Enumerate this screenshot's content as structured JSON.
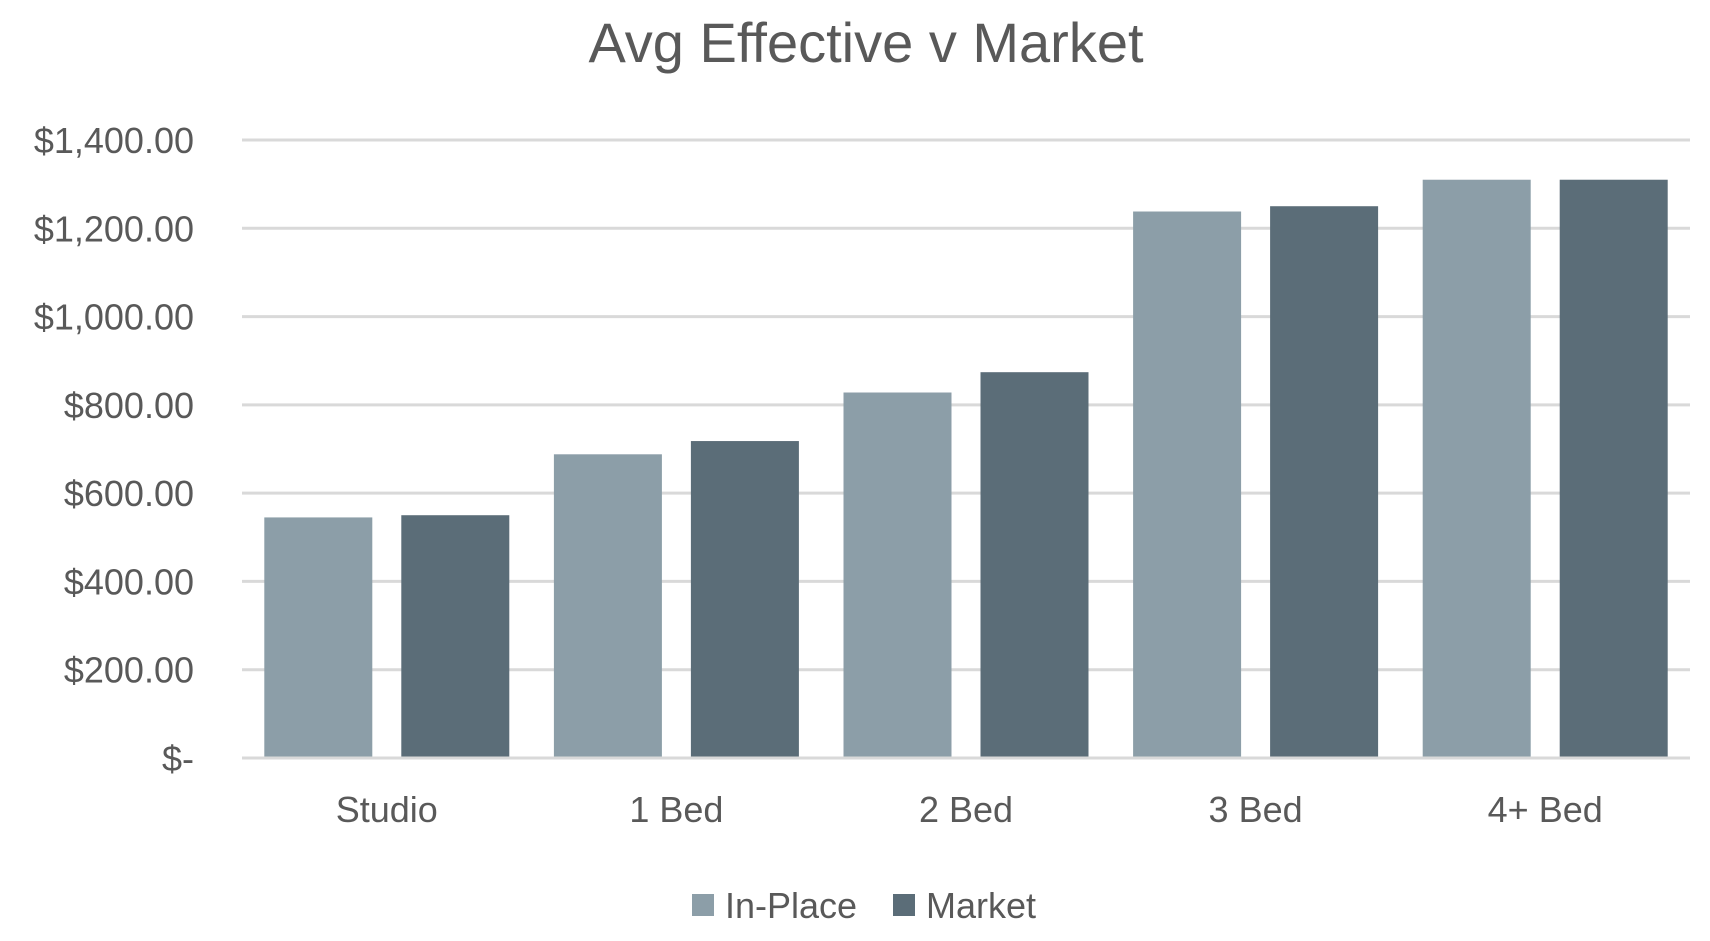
{
  "chart_data": {
    "type": "bar",
    "title": "Avg Effective v Market",
    "xlabel": "",
    "ylabel": "",
    "categories": [
      "Studio",
      "1 Bed",
      "2 Bed",
      "3 Bed",
      "4+ Bed"
    ],
    "series": [
      {
        "name": "In-Place",
        "color": "#8c9ea8",
        "values": [
          545,
          688,
          828,
          1238,
          1310
        ]
      },
      {
        "name": "Market",
        "color": "#5b6d78",
        "values": [
          550,
          718,
          874,
          1250,
          1310
        ]
      }
    ],
    "ylim": [
      0,
      1400
    ],
    "yticks": [
      0,
      200,
      400,
      600,
      800,
      1000,
      1200,
      1400
    ],
    "ytick_labels": [
      "$-",
      "$200.00",
      "$400.00",
      "$600.00",
      "$800.00",
      "$1,000.00",
      "$1,200.00",
      "$1,400.00"
    ],
    "grid": true,
    "legend_position": "bottom"
  }
}
